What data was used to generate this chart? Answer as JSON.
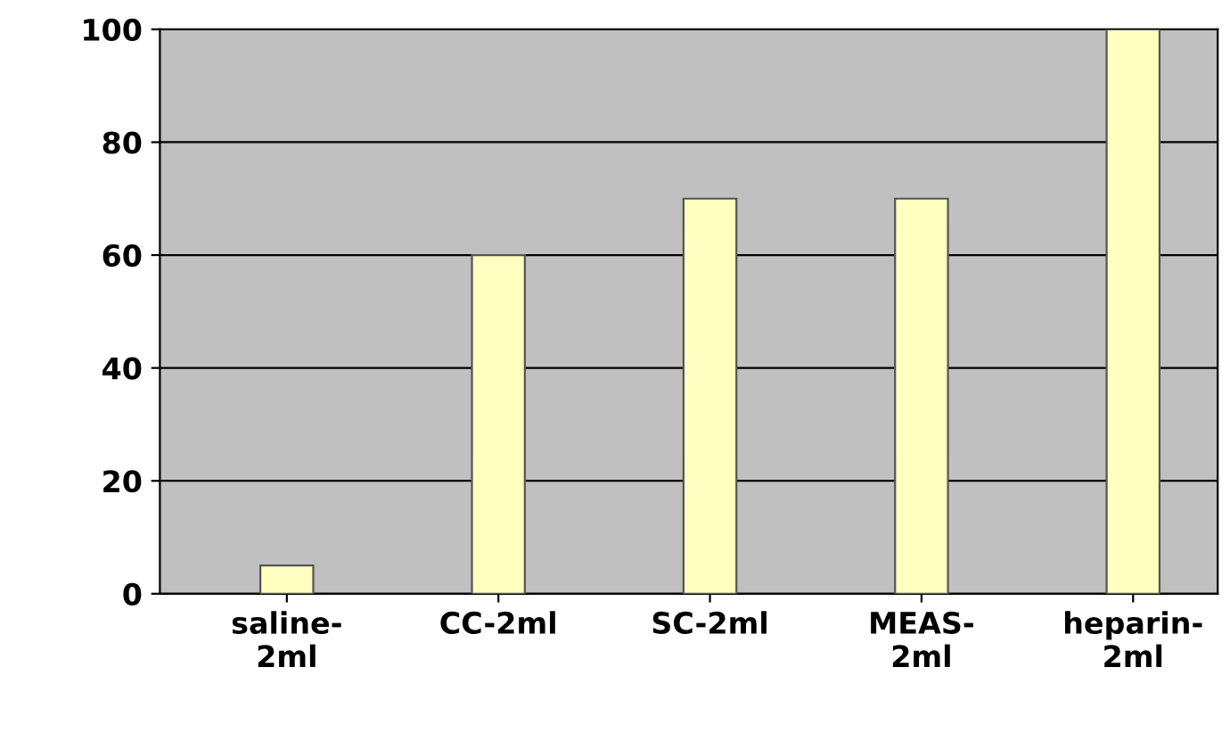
{
  "chart_data": {
    "type": "bar",
    "categories": [
      "saline-\n2ml",
      "CC-2ml",
      "SC-2ml",
      "MEAS-\n2ml",
      "heparin-\n2ml"
    ],
    "values": [
      5,
      60,
      70,
      70,
      100
    ],
    "color": "#ffffc0",
    "ylim": [
      0,
      100
    ],
    "yticks": [
      0,
      20,
      40,
      60,
      80,
      100
    ],
    "grid": "y",
    "legend": false
  }
}
